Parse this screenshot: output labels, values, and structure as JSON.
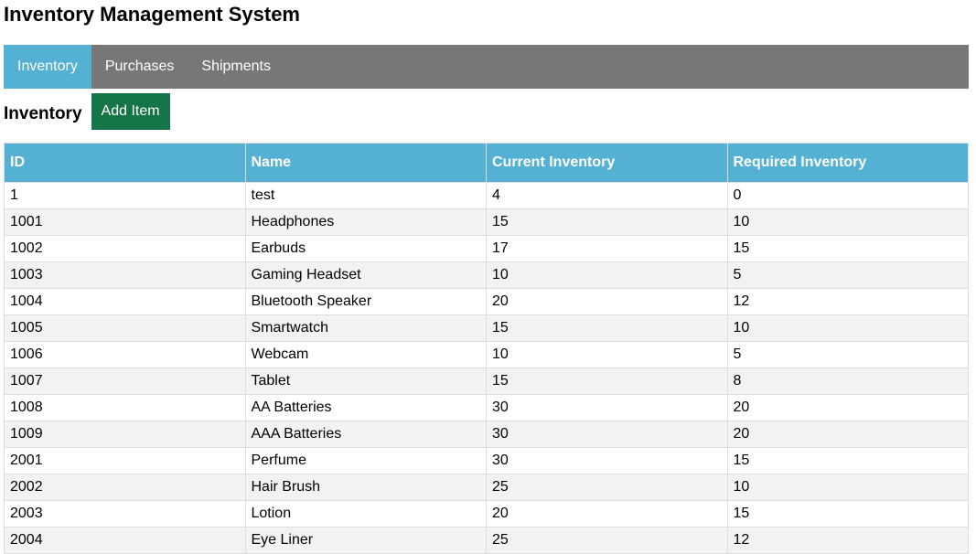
{
  "app": {
    "title": "Inventory Management System"
  },
  "nav": {
    "tabs": [
      {
        "label": "Inventory",
        "active": true
      },
      {
        "label": "Purchases",
        "active": false
      },
      {
        "label": "Shipments",
        "active": false
      }
    ]
  },
  "section": {
    "title": "Inventory",
    "add_button_label": "Add Item"
  },
  "table": {
    "columns": [
      "ID",
      "Name",
      "Current Inventory",
      "Required Inventory"
    ],
    "rows": [
      [
        "1",
        "test",
        "4",
        "0"
      ],
      [
        "1001",
        "Headphones",
        "15",
        "10"
      ],
      [
        "1002",
        "Earbuds",
        "17",
        "15"
      ],
      [
        "1003",
        "Gaming Headset",
        "10",
        "5"
      ],
      [
        "1004",
        "Bluetooth Speaker",
        "20",
        "12"
      ],
      [
        "1005",
        "Smartwatch",
        "15",
        "10"
      ],
      [
        "1006",
        "Webcam",
        "10",
        "5"
      ],
      [
        "1007",
        "Tablet",
        "15",
        "8"
      ],
      [
        "1008",
        "AA Batteries",
        "30",
        "20"
      ],
      [
        "1009",
        "AAA Batteries",
        "30",
        "20"
      ],
      [
        "2001",
        "Perfume",
        "30",
        "15"
      ],
      [
        "2002",
        "Hair Brush",
        "25",
        "10"
      ],
      [
        "2003",
        "Lotion",
        "20",
        "15"
      ],
      [
        "2004",
        "Eye Liner",
        "25",
        "12"
      ]
    ]
  },
  "colors": {
    "nav_background": "#777777",
    "active_tab": "#55b1d3",
    "header_background": "#55b1d3",
    "add_button": "#167548",
    "striped_row": "#f2f2f2"
  }
}
